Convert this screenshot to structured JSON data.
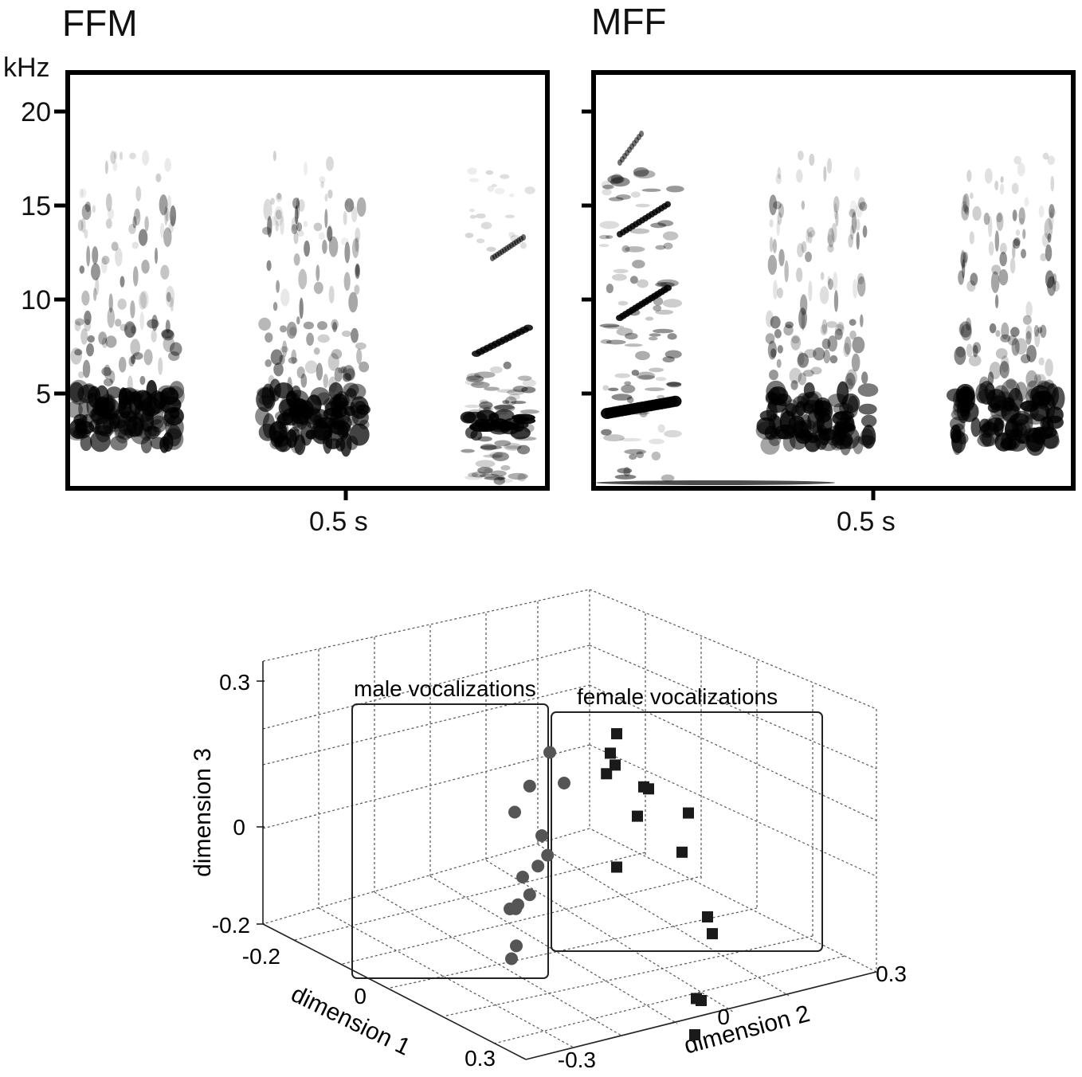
{
  "spectrograms": {
    "left_title": "FFM",
    "right_title": "MFF",
    "unit_label": "kHz",
    "y_ticks": [
      "20",
      "15",
      "10",
      "5"
    ],
    "time_label": "0.5 s"
  },
  "chart_data": {
    "type": "scatter",
    "projection": "3d",
    "xlabel": "dimension 1",
    "ylabel": "dimension 2",
    "zlabel": "dimension 3",
    "xlim": [
      -0.2,
      0.3
    ],
    "ylim": [
      -0.3,
      0.3
    ],
    "zlim": [
      -0.2,
      0.3
    ],
    "x_ticks": [
      "-0.2",
      "0",
      "0.3"
    ],
    "y_ticks": [
      "-0.3",
      "0",
      "0.3"
    ],
    "z_ticks": [
      "-0.2",
      "0",
      "0.3"
    ],
    "grid": true,
    "groups": [
      {
        "label": "male vocalizations",
        "marker": "circle",
        "color": "#555555",
        "points": [
          [
            0.05,
            -0.05,
            0.2
          ],
          [
            0.05,
            -0.02,
            0.15
          ],
          [
            0.02,
            -0.1,
            0.1
          ],
          [
            0.0,
            -0.08,
            0.0
          ],
          [
            0.03,
            -0.06,
            -0.02
          ],
          [
            -0.05,
            -0.15,
            0.0
          ],
          [
            0.03,
            -0.08,
            -0.05
          ],
          [
            0.0,
            -0.12,
            -0.1
          ],
          [
            0.02,
            -0.1,
            -0.12
          ],
          [
            0.0,
            -0.13,
            -0.16
          ],
          [
            -0.02,
            -0.14,
            -0.18
          ],
          [
            -0.05,
            -0.16,
            -0.2
          ],
          [
            0.05,
            -0.12,
            -0.22
          ],
          [
            0.05,
            -0.13,
            -0.25
          ]
        ]
      },
      {
        "label": "female vocalizations",
        "marker": "square",
        "color": "#1a1a1a",
        "points": [
          [
            -0.1,
            0.05,
            0.22
          ],
          [
            -0.05,
            0.05,
            0.2
          ],
          [
            -0.05,
            0.06,
            0.18
          ],
          [
            -0.02,
            0.05,
            0.17
          ],
          [
            -0.05,
            0.12,
            0.16
          ],
          [
            -0.05,
            0.13,
            0.16
          ],
          [
            0.0,
            0.12,
            0.12
          ],
          [
            -0.1,
            0.2,
            0.12
          ],
          [
            -0.05,
            0.2,
            0.06
          ],
          [
            0.05,
            0.28,
            0.0
          ],
          [
            0.05,
            0.29,
            -0.03
          ],
          [
            -0.1,
            0.05,
            -0.05
          ],
          [
            0.1,
            0.27,
            -0.15
          ],
          [
            0.1,
            0.28,
            -0.15
          ],
          [
            0.15,
            0.28,
            -0.2
          ]
        ]
      }
    ]
  }
}
